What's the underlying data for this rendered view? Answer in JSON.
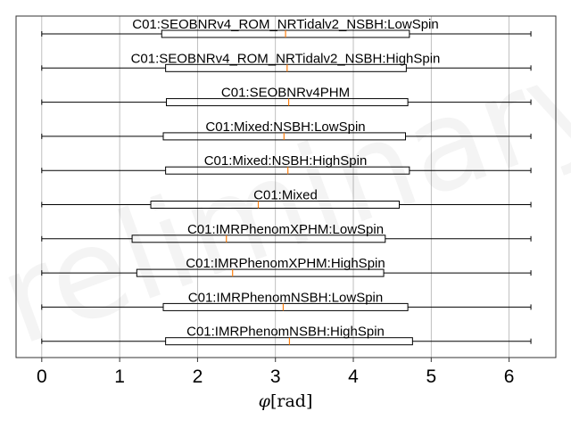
{
  "chart_data": {
    "type": "boxplot",
    "orientation": "horizontal",
    "xlabel_var": "φ",
    "xlabel_unit": "[rad]",
    "xlim": [
      -0.33,
      6.6
    ],
    "xticks": [
      0,
      1,
      2,
      3,
      4,
      5,
      6
    ],
    "grid": "x",
    "watermark": "Preliminary",
    "colors": {
      "box": "#000000",
      "median": "#ff7f0e",
      "grid": "#b0b0b0",
      "frame": "#333333"
    },
    "series": [
      {
        "name": "C01:SEOBNRv4_ROM_NRTidalv2_NSBH:LowSpin",
        "whisker_low": 0.0,
        "q1": 1.54,
        "median": 3.13,
        "q3": 4.72,
        "whisker_high": 6.28
      },
      {
        "name": "C01:SEOBNRv4_ROM_NRTidalv2_NSBH:HighSpin",
        "whisker_low": 0.0,
        "q1": 1.59,
        "median": 3.15,
        "q3": 4.68,
        "whisker_high": 6.28
      },
      {
        "name": "C01:SEOBNRv4PHM",
        "whisker_low": 0.0,
        "q1": 1.6,
        "median": 3.17,
        "q3": 4.7,
        "whisker_high": 6.28
      },
      {
        "name": "C01:Mixed:NSBH:LowSpin",
        "whisker_low": 0.0,
        "q1": 1.56,
        "median": 3.11,
        "q3": 4.67,
        "whisker_high": 6.28
      },
      {
        "name": "C01:Mixed:NSBH:HighSpin",
        "whisker_low": 0.0,
        "q1": 1.59,
        "median": 3.16,
        "q3": 4.72,
        "whisker_high": 6.28
      },
      {
        "name": "C01:Mixed",
        "whisker_low": 0.0,
        "q1": 1.4,
        "median": 2.78,
        "q3": 4.59,
        "whisker_high": 6.28
      },
      {
        "name": "C01:IMRPhenomXPHM:LowSpin",
        "whisker_low": 0.0,
        "q1": 1.16,
        "median": 2.37,
        "q3": 4.41,
        "whisker_high": 6.28
      },
      {
        "name": "C01:IMRPhenomXPHM:HighSpin",
        "whisker_low": 0.0,
        "q1": 1.22,
        "median": 2.45,
        "q3": 4.39,
        "whisker_high": 6.28
      },
      {
        "name": "C01:IMRPhenomNSBH:LowSpin",
        "whisker_low": 0.0,
        "q1": 1.56,
        "median": 3.1,
        "q3": 4.7,
        "whisker_high": 6.28
      },
      {
        "name": "C01:IMRPhenomNSBH:HighSpin",
        "whisker_low": 0.0,
        "q1": 1.59,
        "median": 3.18,
        "q3": 4.76,
        "whisker_high": 6.28
      }
    ]
  }
}
